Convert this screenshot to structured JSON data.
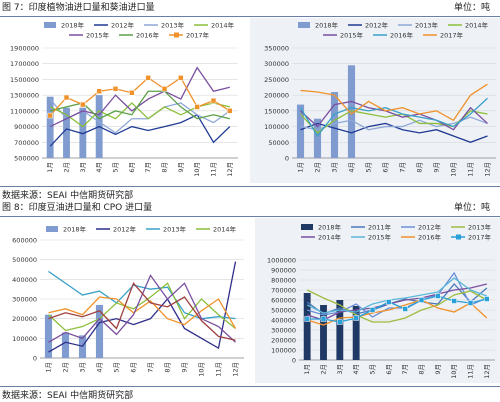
{
  "figure7": {
    "title": "图 7：印度植物油进口量和葵油进口量",
    "unit": "单位：吨",
    "source": "数据来源：SEAI  中信期货研究部"
  },
  "figure8": {
    "title": "图 8：印度豆油进口量和 CPO 进口量",
    "unit": "单位：吨",
    "source": "数据来源：SEAI  中信期货研究部"
  },
  "colors": {
    "2018": "#7f9bcf",
    "2018_dark": "#1f3864",
    "2011": "#4a6fa5",
    "2012": "#1f3a93",
    "2013": "#8fa8d8",
    "2014": "#8bbf3b",
    "2015": "#7a4fa0",
    "2016": "#3aa0c8",
    "2017": "#f0922b",
    "2016_tl": "#5aa046",
    "2015_bl": "#2e2e8a",
    "2016_bl": "#a04040",
    "2017_bl": "#7a4fa0",
    "2012_br": "#6a8fd8",
    "2013_br": "#9ebc40",
    "2014_br": "#7a4fa0",
    "2015_br": "#5bb8d8",
    "2016_br": "#f0922b",
    "2017_br": "#2aa0d8",
    "2011_br": "#4a7ab8"
  },
  "chart_data": [
    {
      "id": "chart-tl",
      "type": "bar+line",
      "months": [
        "1月",
        "2月",
        "3月",
        "4月",
        "5月",
        "6月",
        "7月",
        "8月",
        "9月",
        "10月",
        "11月",
        "12月"
      ],
      "ylim": [
        500000,
        1900000
      ],
      "yticks": [
        "1900000",
        "1700000",
        "1500000",
        "1300000",
        "1100000",
        "900000",
        "700000",
        "500000"
      ],
      "ytick_values": [
        1900000,
        1700000,
        1500000,
        1300000,
        1100000,
        900000,
        700000,
        500000
      ],
      "legend": [
        "2018年",
        "2012年",
        "2013年",
        "2014年",
        "2015年",
        "2016年",
        "2017年"
      ],
      "bars": {
        "name": "2018年",
        "values": [
          1280000,
          1140000,
          1140000,
          1300000
        ]
      },
      "series": [
        {
          "name": "2012年",
          "key": "2012",
          "values": [
            650000,
            870000,
            810000,
            900000,
            800000,
            900000,
            850000,
            900000,
            950000,
            1050000,
            700000,
            900000
          ]
        },
        {
          "name": "2013年",
          "key": "2013",
          "values": [
            1250000,
            1000000,
            1100000,
            960000,
            820000,
            1000000,
            1000000,
            1150000,
            1200000,
            1050000,
            950000,
            1100000
          ]
        },
        {
          "name": "2014年",
          "key": "2014",
          "values": [
            1150000,
            1050000,
            900000,
            1100000,
            1000000,
            1200000,
            1000000,
            1150000,
            1050000,
            1150000,
            1200000,
            1150000
          ]
        },
        {
          "name": "2015年",
          "key": "2015",
          "values": [
            900000,
            1000000,
            1100000,
            1050000,
            1300000,
            1100000,
            1250000,
            1350000,
            1250000,
            1650000,
            1350000,
            1400000
          ]
        },
        {
          "name": "2016年",
          "key": "2016_tl",
          "values": [
            1100000,
            1150000,
            1200000,
            1000000,
            1100000,
            1050000,
            1350000,
            1350000,
            1150000,
            1000000,
            1050000,
            1000000
          ]
        },
        {
          "name": "2017年",
          "key": "2017",
          "values": [
            1040000,
            1270000,
            1180000,
            1350000,
            1380000,
            1330000,
            1520000,
            1380000,
            1520000,
            1150000,
            1230000,
            1100000
          ]
        }
      ]
    },
    {
      "id": "chart-tr",
      "type": "bar+line",
      "months": [
        "1月",
        "2月",
        "3月",
        "4月",
        "5月",
        "6月",
        "7月",
        "8月",
        "9月",
        "10月",
        "11月",
        "12月"
      ],
      "ylim": [
        0,
        350000
      ],
      "yticks": [
        "350000",
        "300000",
        "250000",
        "200000",
        "150000",
        "100000",
        "50000",
        "0"
      ],
      "ytick_values": [
        350000,
        300000,
        250000,
        200000,
        150000,
        100000,
        50000,
        0
      ],
      "legend": [
        "2018年",
        "2012年",
        "2013年",
        "2014年",
        "2015年",
        "2016年",
        "2017年"
      ],
      "bars": {
        "name": "2018年",
        "values": [
          170000,
          125000,
          210000,
          295000
        ]
      },
      "series": [
        {
          "name": "2012年",
          "key": "2012",
          "values": [
            90000,
            110000,
            95000,
            80000,
            100000,
            110000,
            90000,
            80000,
            90000,
            70000,
            50000,
            70000
          ]
        },
        {
          "name": "2013年",
          "key": "2013",
          "values": [
            100000,
            90000,
            110000,
            120000,
            90000,
            100000,
            100000,
            120000,
            100000,
            110000,
            130000,
            110000
          ]
        },
        {
          "name": "2014年",
          "key": "2014",
          "values": [
            140000,
            80000,
            120000,
            150000,
            140000,
            130000,
            140000,
            110000,
            110000,
            100000,
            150000,
            140000
          ]
        },
        {
          "name": "2015年",
          "key": "2015",
          "values": [
            150000,
            100000,
            170000,
            180000,
            160000,
            150000,
            130000,
            140000,
            120000,
            90000,
            160000,
            110000
          ]
        },
        {
          "name": "2016年",
          "key": "2016",
          "values": [
            160000,
            70000,
            140000,
            160000,
            150000,
            160000,
            140000,
            130000,
            120000,
            100000,
            140000,
            190000
          ]
        },
        {
          "name": "2017年",
          "key": "2017",
          "values": [
            215000,
            210000,
            200000,
            140000,
            180000,
            150000,
            160000,
            140000,
            150000,
            120000,
            200000,
            235000
          ]
        }
      ]
    },
    {
      "id": "chart-bl",
      "type": "bar+line",
      "months": [
        "1月",
        "2月",
        "3月",
        "4月",
        "5月",
        "6月",
        "7月",
        "8月",
        "9月",
        "10月",
        "11月",
        "12月"
      ],
      "ylim": [
        0,
        600000
      ],
      "yticks": [
        "600000",
        "500000",
        "400000",
        "300000",
        "200000",
        "100000",
        "0"
      ],
      "ytick_values": [
        600000,
        500000,
        400000,
        300000,
        200000,
        100000,
        0
      ],
      "legend": [
        "2018年",
        "2012年",
        "2013年",
        "2014年"
      ],
      "bars": {
        "name": "2018年",
        "values": [
          220000,
          130000,
          115000,
          270000
        ]
      },
      "series": [
        {
          "name": "2012年",
          "key": "2015_bl",
          "values": [
            30000,
            80000,
            60000,
            180000,
            200000,
            170000,
            200000,
            300000,
            150000,
            100000,
            50000,
            490000
          ]
        },
        {
          "name": "2013年",
          "key": "2016",
          "values": [
            440000,
            380000,
            320000,
            340000,
            280000,
            370000,
            350000,
            360000,
            230000,
            200000,
            210000,
            200000
          ]
        },
        {
          "name": "2014年",
          "key": "2014",
          "values": [
            220000,
            140000,
            160000,
            200000,
            280000,
            250000,
            310000,
            380000,
            200000,
            300000,
            220000,
            150000
          ]
        },
        {
          "name": "",
          "key": "2017",
          "values": [
            230000,
            250000,
            220000,
            310000,
            300000,
            230000,
            290000,
            200000,
            170000,
            240000,
            300000,
            150000
          ]
        },
        {
          "name": "",
          "key": "2017_bl",
          "values": [
            80000,
            130000,
            100000,
            200000,
            120000,
            220000,
            420000,
            300000,
            380000,
            200000,
            160000,
            80000
          ]
        },
        {
          "name": "",
          "key": "2016_bl",
          "values": [
            200000,
            230000,
            210000,
            240000,
            150000,
            380000,
            280000,
            260000,
            310000,
            190000,
            110000,
            90000
          ]
        }
      ]
    },
    {
      "id": "chart-br",
      "type": "bar+line",
      "months": [
        "1月",
        "2月",
        "3月",
        "4月",
        "5月",
        "6月",
        "7月",
        "8月",
        "9月",
        "10月",
        "11月",
        "12月"
      ],
      "ylim": [
        0,
        1000000
      ],
      "yticks": [
        "1000000",
        "900000",
        "800000",
        "700000",
        "600000",
        "500000",
        "400000",
        "300000",
        "200000",
        "100000",
        "0"
      ],
      "ytick_values": [
        1000000,
        900000,
        800000,
        700000,
        600000,
        500000,
        400000,
        300000,
        200000,
        100000,
        0
      ],
      "legend": [
        "2018年",
        "2011年",
        "2012年",
        "2013年",
        "2014年",
        "2015年",
        "2016年",
        "2017年"
      ],
      "bars": {
        "name": "2018年",
        "values": [
          670000,
          550000,
          600000,
          540000
        ]
      },
      "series": [
        {
          "name": "2011年",
          "key": "2011_br",
          "values": [
            580000,
            460000,
            520000,
            460000,
            500000,
            560000,
            610000,
            580000,
            560000,
            760000,
            580000,
            720000
          ]
        },
        {
          "name": "2012年",
          "key": "2012_br",
          "values": [
            500000,
            450000,
            480000,
            560000,
            430000,
            520000,
            520000,
            600000,
            650000,
            870000,
            550000,
            620000
          ]
        },
        {
          "name": "2013年",
          "key": "2013_br",
          "values": [
            700000,
            620000,
            550000,
            450000,
            380000,
            380000,
            420000,
            500000,
            550000,
            650000,
            690000,
            600000
          ]
        },
        {
          "name": "2014年",
          "key": "2014_br",
          "values": [
            450000,
            400000,
            480000,
            500000,
            520000,
            560000,
            600000,
            620000,
            660000,
            700000,
            720000,
            760000
          ]
        },
        {
          "name": "2015年",
          "key": "2015_br",
          "values": [
            550000,
            470000,
            500000,
            480000,
            560000,
            600000,
            620000,
            650000,
            680000,
            820000,
            700000,
            640000
          ]
        },
        {
          "name": "2016年",
          "key": "2016_br",
          "values": [
            400000,
            350000,
            420000,
            430000,
            470000,
            500000,
            550000,
            600000,
            520000,
            480000,
            570000,
            420000
          ]
        },
        {
          "name": "2017年",
          "key": "2017_br",
          "values": [
            410000,
            410000,
            380000,
            420000,
            500000,
            580000,
            510000,
            600000,
            640000,
            590000,
            570000,
            610000
          ]
        }
      ]
    }
  ]
}
